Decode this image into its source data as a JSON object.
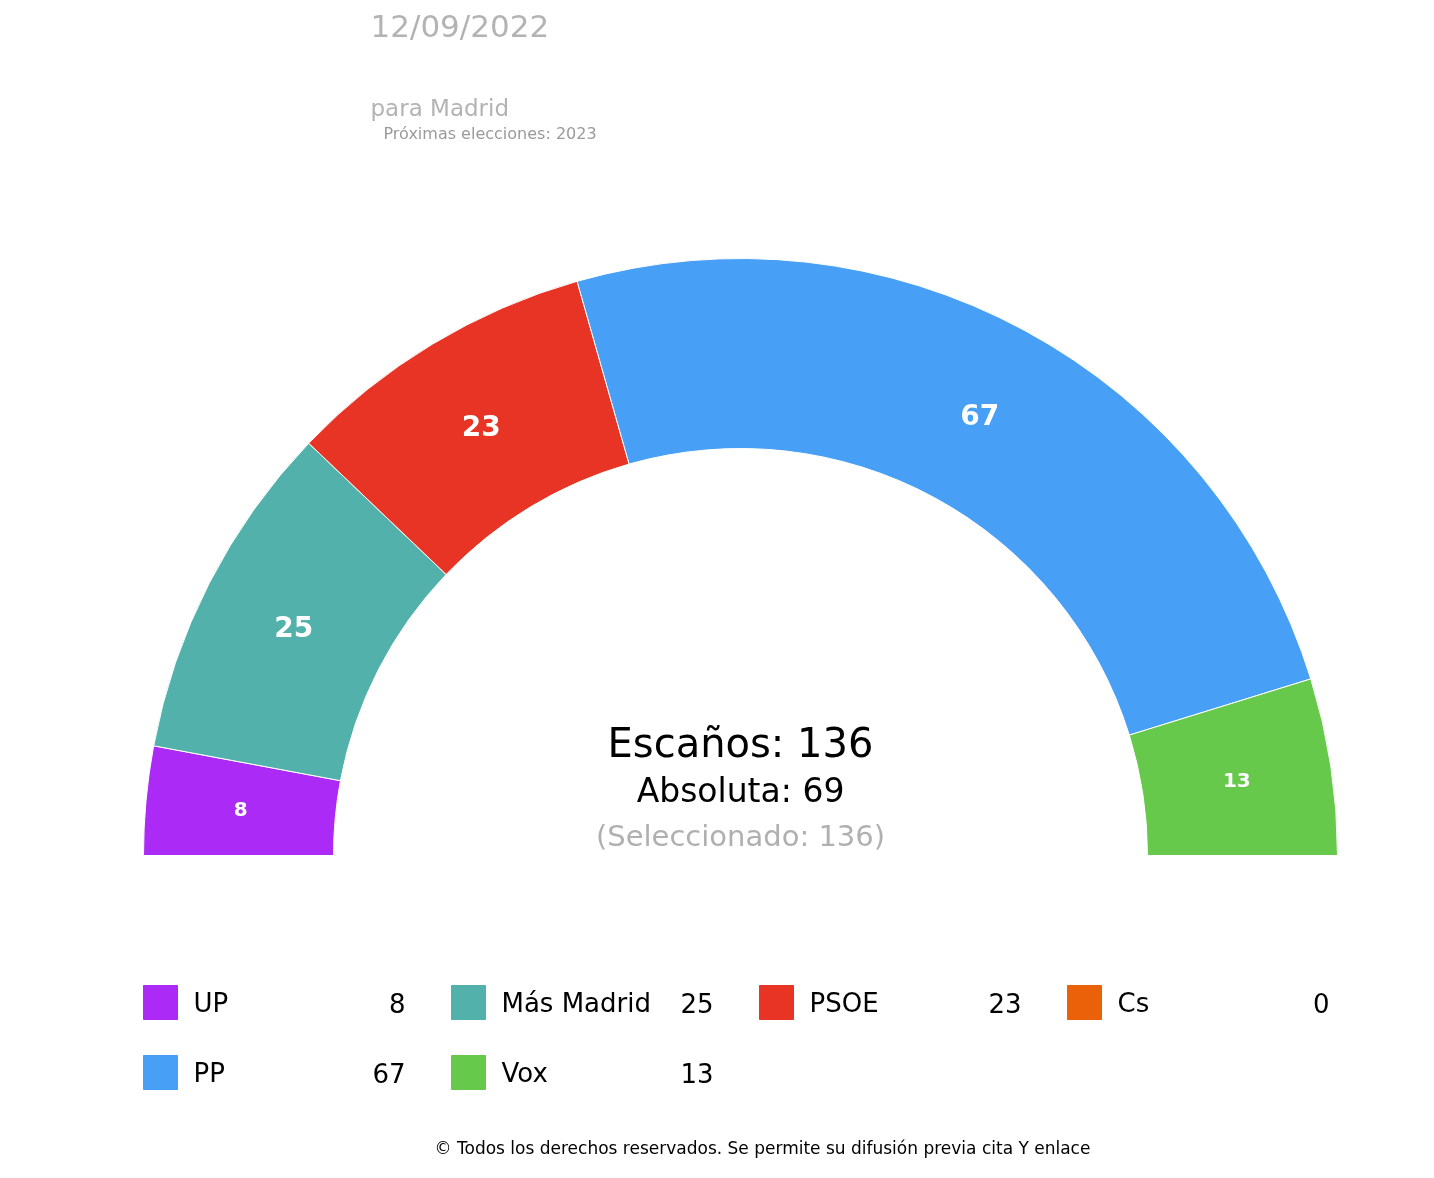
{
  "chart_data": {
    "type": "donut",
    "title": "12/09/2022",
    "subtitle": "para Madrid",
    "categories": [
      "UP",
      "Más Madrid",
      "PSOE",
      "Cs",
      "PP",
      "Vox"
    ],
    "values": [
      8,
      25,
      23,
      0,
      67,
      13
    ],
    "value_labels": [
      "8",
      "25",
      "23",
      "0",
      "67",
      "13"
    ],
    "colors": [
      "#ab2af5",
      "#52b1ab",
      "#e83424",
      "#eb6109",
      "#479ff6",
      "#66c94c"
    ],
    "legend": "bottom",
    "annotations": [
      "Próximas elecciones: 2023",
      "Escaños: 136",
      "Absoluta: 69",
      "(Seleccionado: 136)",
      "© Todos los derechos reservados. Se permite su difusión previa cita Y enlace"
    ]
  }
}
